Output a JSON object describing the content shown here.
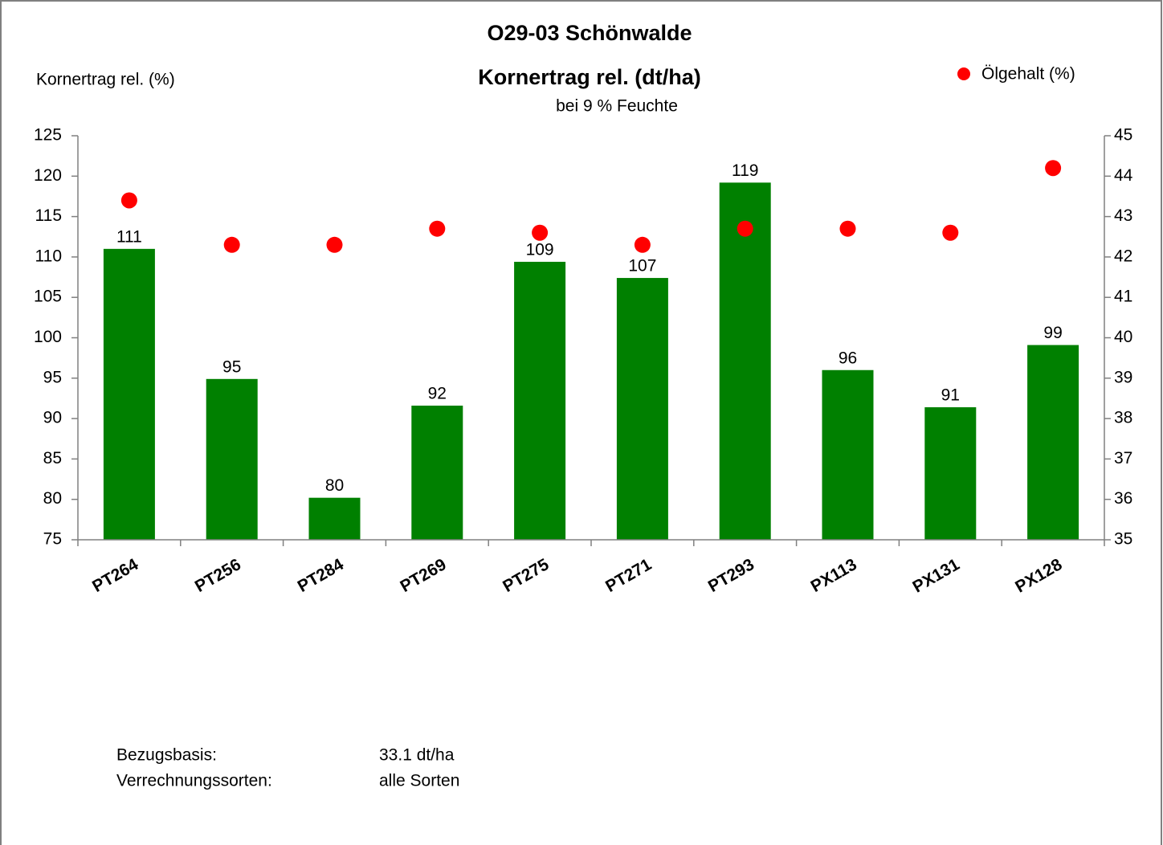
{
  "chart_data": {
    "type": "bar",
    "title": "O29-03 Schönwalde",
    "subtitle": "Kornertrag rel. (dt/ha)",
    "note": "bei 9 % Feuchte",
    "y_label": "Kornertrag rel. (%)",
    "categories": [
      "PT264",
      "PT256",
      "PT284",
      "PT269",
      "PT275",
      "PT271",
      "PT293",
      "PX113",
      "PX131",
      "PX128"
    ],
    "series": [
      {
        "type": "bar",
        "color": "#008000",
        "values": [
          111.0,
          94.9,
          80.2,
          91.6,
          109.4,
          107.4,
          119.2,
          96.0,
          91.4,
          99.1
        ],
        "value_labels": [
          "111",
          "95",
          "80",
          "92",
          "109",
          "107",
          "119",
          "96",
          "91",
          "99"
        ]
      },
      {
        "type": "scatter",
        "name": "Ölgehalt (%)",
        "color": "#ff0000",
        "axis": "y2",
        "values": [
          43.4,
          42.3,
          42.3,
          42.7,
          42.6,
          42.3,
          42.7,
          42.7,
          42.6,
          44.2
        ]
      }
    ],
    "ylim": [
      75,
      125
    ],
    "yticks": [
      75,
      80,
      85,
      90,
      95,
      100,
      105,
      110,
      115,
      120,
      125
    ],
    "y2lim": [
      35,
      45
    ],
    "y2ticks": [
      35,
      36,
      37,
      38,
      39,
      40,
      41,
      42,
      43,
      44,
      45
    ],
    "legend": "top-right",
    "grid": false,
    "footnotes": [
      {
        "label": "Bezugsbasis:",
        "value": "33.1 dt/ha"
      },
      {
        "label": "Verrechnungssorten:",
        "value": "alle Sorten"
      }
    ]
  }
}
